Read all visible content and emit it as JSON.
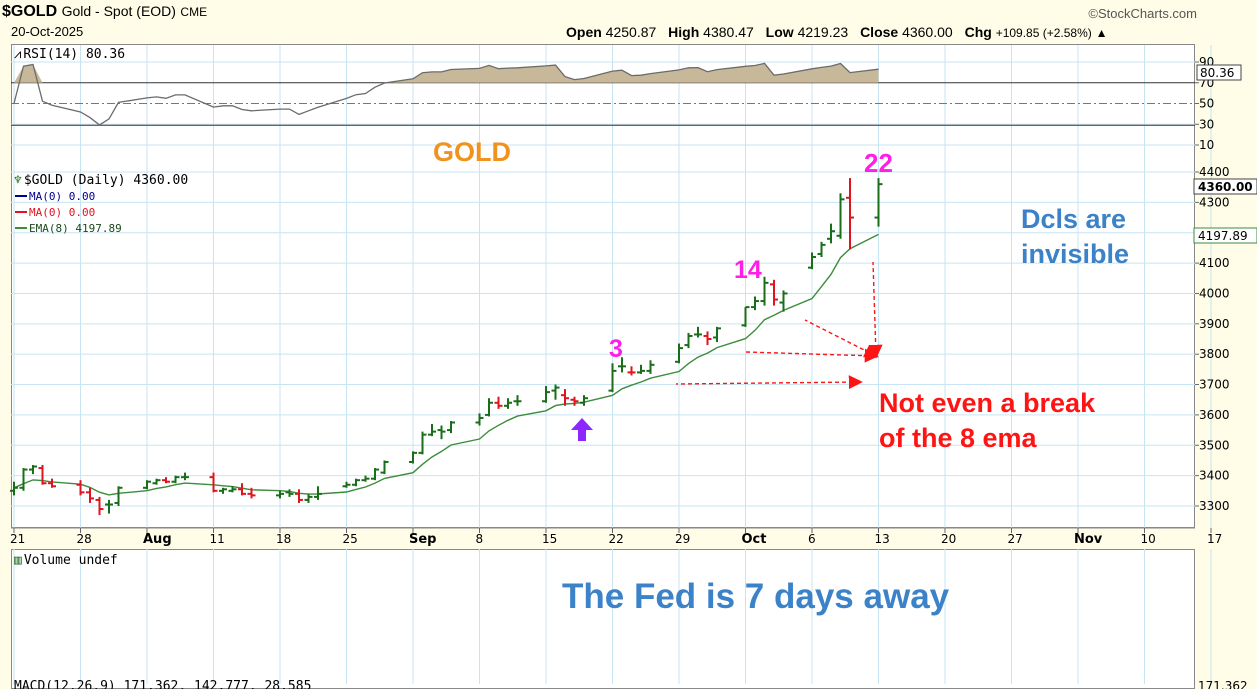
{
  "header": {
    "symbol": "$GOLD",
    "description": "Gold - Spot (EOD)",
    "exchange": "CME",
    "date": "20-Oct-2025",
    "brand": "StockCharts.com",
    "open_label": "Open",
    "open": "4250.87",
    "high_label": "High",
    "high": "4380.47",
    "low_label": "Low",
    "low": "4219.23",
    "close_label": "Close",
    "close": "4360.00",
    "chg_label": "Chg",
    "chg": "+109.85 (+2.58%)",
    "chg_arrow": "▲"
  },
  "rsi": {
    "legend": "RSI(14) 80.36",
    "last_label": "80.36",
    "ticks": [
      "90",
      "70",
      "50",
      "30",
      "10"
    ]
  },
  "price": {
    "legend": "$GOLD (Daily) 4360.00",
    "ma1": "MA(0) 0.00",
    "ma2": "MA(0) 0.00",
    "ema": "EMA(8) 4197.89",
    "last_label": "4360.00",
    "ema_label": "4197.89",
    "ticks": [
      "4400",
      "4300",
      "4200",
      "4100",
      "4000",
      "3900",
      "3800",
      "3700",
      "3600",
      "3500",
      "3400",
      "3300"
    ]
  },
  "xaxis": {
    "labels": [
      "21",
      "28",
      "Aug",
      "11",
      "18",
      "25",
      "Sep",
      "8",
      "15",
      "22",
      "29",
      "Oct",
      "6",
      "13",
      "20",
      "27",
      "Nov",
      "10",
      "17"
    ]
  },
  "volume": {
    "legend": "Volume undef"
  },
  "macd": {
    "legend": "MACD(12,26,9) 171.362, 142.777, 28.585",
    "label": "171.362"
  },
  "annotations": {
    "gold": "GOLD",
    "n3": "3",
    "n14": "14",
    "n22": "22",
    "dcls1": "Dcls are",
    "dcls2": "invisible",
    "break1": "Not even a break",
    "break2": "of the 8 ema",
    "fed": "The Fed is 7 days away"
  },
  "colors": {
    "up": "#1a6e1a",
    "down": "#e0141e",
    "ema": "#3c8c3c",
    "rsi_fill": "#c8b89a",
    "gold_text": "#f0921e",
    "magenta": "#ff1ee6",
    "blue_text": "#3c82c8",
    "red_text": "#ff1414",
    "arrow": "#8c28ff"
  },
  "chart_data": {
    "type": "ohlc",
    "title": "$GOLD (Daily)",
    "ylim": [
      3250,
      4420
    ],
    "x": [
      "2025-07-21",
      "2025-07-22",
      "2025-07-23",
      "2025-07-24",
      "2025-07-25",
      "2025-07-28",
      "2025-07-29",
      "2025-07-30",
      "2025-07-31",
      "2025-08-01",
      "2025-08-04",
      "2025-08-05",
      "2025-08-06",
      "2025-08-07",
      "2025-08-08",
      "2025-08-11",
      "2025-08-12",
      "2025-08-13",
      "2025-08-14",
      "2025-08-15",
      "2025-08-18",
      "2025-08-19",
      "2025-08-20",
      "2025-08-21",
      "2025-08-22",
      "2025-08-25",
      "2025-08-26",
      "2025-08-27",
      "2025-08-28",
      "2025-08-29",
      "2025-09-01",
      "2025-09-02",
      "2025-09-03",
      "2025-09-04",
      "2025-09-05",
      "2025-09-08",
      "2025-09-09",
      "2025-09-10",
      "2025-09-11",
      "2025-09-12",
      "2025-09-15",
      "2025-09-16",
      "2025-09-17",
      "2025-09-18",
      "2025-09-19",
      "2025-09-22",
      "2025-09-23",
      "2025-09-24",
      "2025-09-25",
      "2025-09-26",
      "2025-09-29",
      "2025-09-30",
      "2025-10-01",
      "2025-10-02",
      "2025-10-03",
      "2025-10-06",
      "2025-10-07",
      "2025-10-08",
      "2025-10-09",
      "2025-10-10",
      "2025-10-13",
      "2025-10-14",
      "2025-10-15",
      "2025-10-16",
      "2025-10-17",
      "2025-10-20"
    ],
    "open": [
      3350,
      3360,
      3420,
      3425,
      3375,
      3370,
      3345,
      3320,
      3305,
      3310,
      3360,
      3375,
      3385,
      3380,
      3395,
      3395,
      3350,
      3350,
      3355,
      3340,
      3335,
      3345,
      3340,
      3320,
      3330,
      3365,
      3370,
      3385,
      3390,
      3410,
      3445,
      3475,
      3535,
      3550,
      3550,
      3575,
      3600,
      3640,
      3630,
      3645,
      3645,
      3680,
      3665,
      3650,
      3640,
      3680,
      3760,
      3740,
      3740,
      3745,
      3775,
      3830,
      3865,
      3860,
      3855,
      3895,
      3955,
      3975,
      4030,
      3970,
      4085,
      4130,
      4180,
      4190,
      4315,
      4250
    ],
    "high": [
      3380,
      3425,
      3435,
      3435,
      3390,
      3385,
      3360,
      3330,
      3320,
      3365,
      3385,
      3390,
      3395,
      3400,
      3410,
      3410,
      3360,
      3365,
      3375,
      3360,
      3350,
      3355,
      3355,
      3340,
      3365,
      3380,
      3390,
      3400,
      3425,
      3450,
      3480,
      3545,
      3570,
      3565,
      3580,
      3605,
      3655,
      3660,
      3655,
      3665,
      3695,
      3700,
      3685,
      3660,
      3665,
      3770,
      3790,
      3760,
      3765,
      3780,
      3835,
      3870,
      3890,
      3875,
      3890,
      3955,
      3990,
      4055,
      4045,
      4010,
      4135,
      4170,
      4230,
      4330,
      4380,
      4380
    ],
    "low": [
      3335,
      3350,
      3405,
      3370,
      3360,
      3335,
      3310,
      3270,
      3275,
      3300,
      3355,
      3370,
      3375,
      3375,
      3385,
      3345,
      3340,
      3345,
      3335,
      3325,
      3325,
      3330,
      3310,
      3310,
      3320,
      3360,
      3365,
      3380,
      3385,
      3405,
      3440,
      3470,
      3530,
      3520,
      3540,
      3565,
      3595,
      3620,
      3620,
      3630,
      3640,
      3650,
      3630,
      3630,
      3630,
      3675,
      3740,
      3730,
      3735,
      3735,
      3770,
      3820,
      3855,
      3830,
      3840,
      3890,
      3945,
      3960,
      3960,
      3940,
      4080,
      4120,
      4165,
      4180,
      4145,
      4220
    ],
    "close": [
      3360,
      3420,
      3430,
      3375,
      3365,
      3345,
      3325,
      3290,
      3305,
      3360,
      3380,
      3385,
      3380,
      3395,
      3395,
      3350,
      3355,
      3355,
      3340,
      3335,
      3340,
      3340,
      3320,
      3330,
      3340,
      3370,
      3385,
      3390,
      3420,
      3445,
      3475,
      3535,
      3545,
      3545,
      3575,
      3590,
      3640,
      3630,
      3640,
      3645,
      3675,
      3690,
      3655,
      3645,
      3655,
      3745,
      3760,
      3740,
      3745,
      3765,
      3820,
      3860,
      3865,
      3850,
      3885,
      3955,
      3975,
      4035,
      3980,
      4000,
      4120,
      4160,
      4205,
      4310,
      4250,
      4360
    ]
  }
}
